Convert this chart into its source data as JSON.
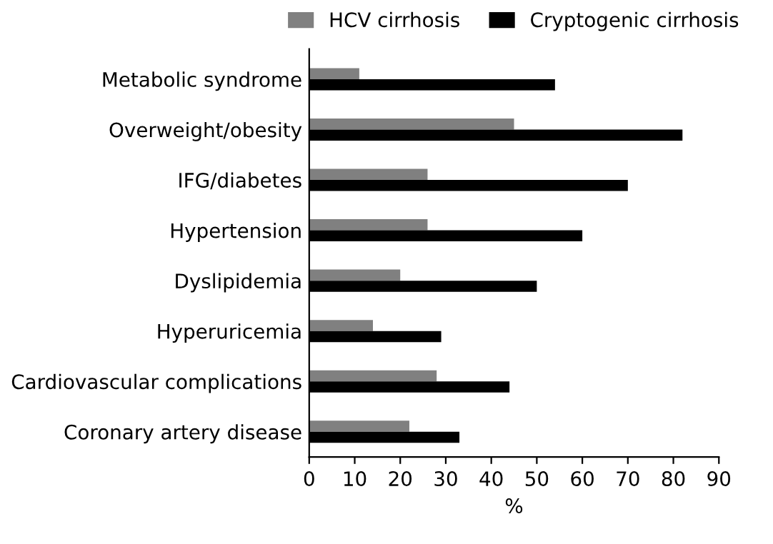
{
  "chart_data": {
    "type": "bar",
    "orientation": "horizontal",
    "xlabel": "%",
    "categories": [
      "Metabolic syndrome",
      "Overweight/obesity",
      "IFG/diabetes",
      "Hypertension",
      "Dyslipidemia",
      "Hyperuricemia",
      "Cardiovascular complications",
      "Coronary artery disease"
    ],
    "series": [
      {
        "name": "HCV cirrhosis",
        "color": "#808080",
        "values": [
          11,
          45,
          26,
          26,
          20,
          14,
          28,
          22
        ]
      },
      {
        "name": "Cryptogenic cirrhosis",
        "color": "#000000",
        "values": [
          54,
          82,
          70,
          60,
          50,
          29,
          44,
          33
        ]
      }
    ],
    "xlim": [
      0,
      90
    ],
    "xticks": [
      0,
      10,
      20,
      30,
      40,
      50,
      60,
      70,
      80,
      90
    ],
    "legend": "top",
    "grid": false
  }
}
